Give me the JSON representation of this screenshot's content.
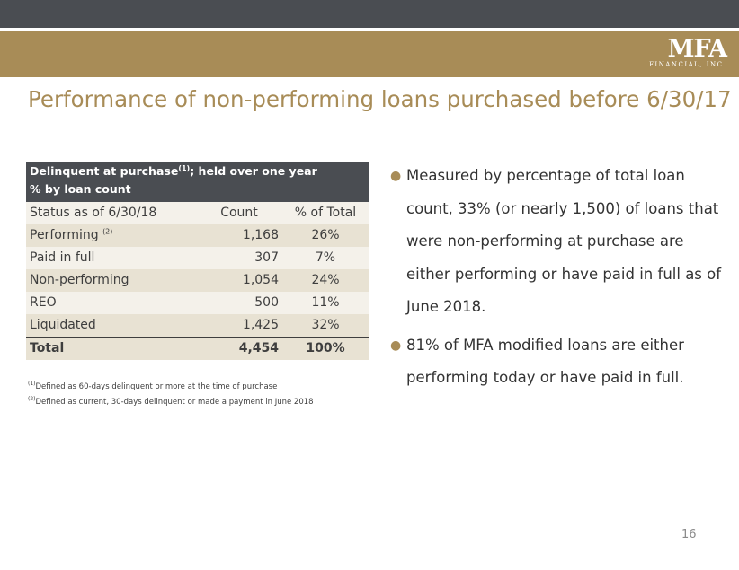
{
  "header": {
    "logo_text": "MFA",
    "logo_subtext": "FINANCIAL, INC."
  },
  "title": "Performance of non-performing loans purchased before 6/30/17",
  "table": {
    "heading_line1": "Delinquent at purchase",
    "heading_line1_sup": "(1)",
    "heading_line1_rest": "; held over one year",
    "heading_line2": "% by loan count",
    "columns": [
      "Status as of 6/30/18",
      "Count",
      "% of Total"
    ],
    "rows": [
      {
        "status": "Performing",
        "sup": "(2)",
        "count": "1,168",
        "pct": "26%"
      },
      {
        "status": "Paid in full",
        "sup": "",
        "count": "307",
        "pct": "7%"
      },
      {
        "status": "Non-performing",
        "sup": "",
        "count": "1,054",
        "pct": "24%"
      },
      {
        "status": "REO",
        "sup": "",
        "count": "500",
        "pct": "11%"
      },
      {
        "status": "Liquidated",
        "sup": "",
        "count": "1,425",
        "pct": "32%"
      }
    ],
    "total": {
      "status": "Total",
      "count": "4,454",
      "pct": "100%"
    }
  },
  "footnotes": [
    {
      "marker": "(1)",
      "text": "Defined as 60-days delinquent or more at the time of purchase"
    },
    {
      "marker": "(2)",
      "text": "Defined as current, 30-days delinquent or made a payment in June 2018"
    }
  ],
  "bullets": [
    "Measured by percentage of total loan count, 33% (or nearly 1,500) of loans that were non-performing at purchase are either performing or have paid in full as of June 2018.",
    "81% of MFA modified loans are either performing today or have paid in full."
  ],
  "page_number": "16",
  "colors": {
    "accent": "#a88c57",
    "dark_bar": "#4a4d52",
    "row_odd": "#e8e2d3",
    "row_even": "#f4f1ea"
  }
}
